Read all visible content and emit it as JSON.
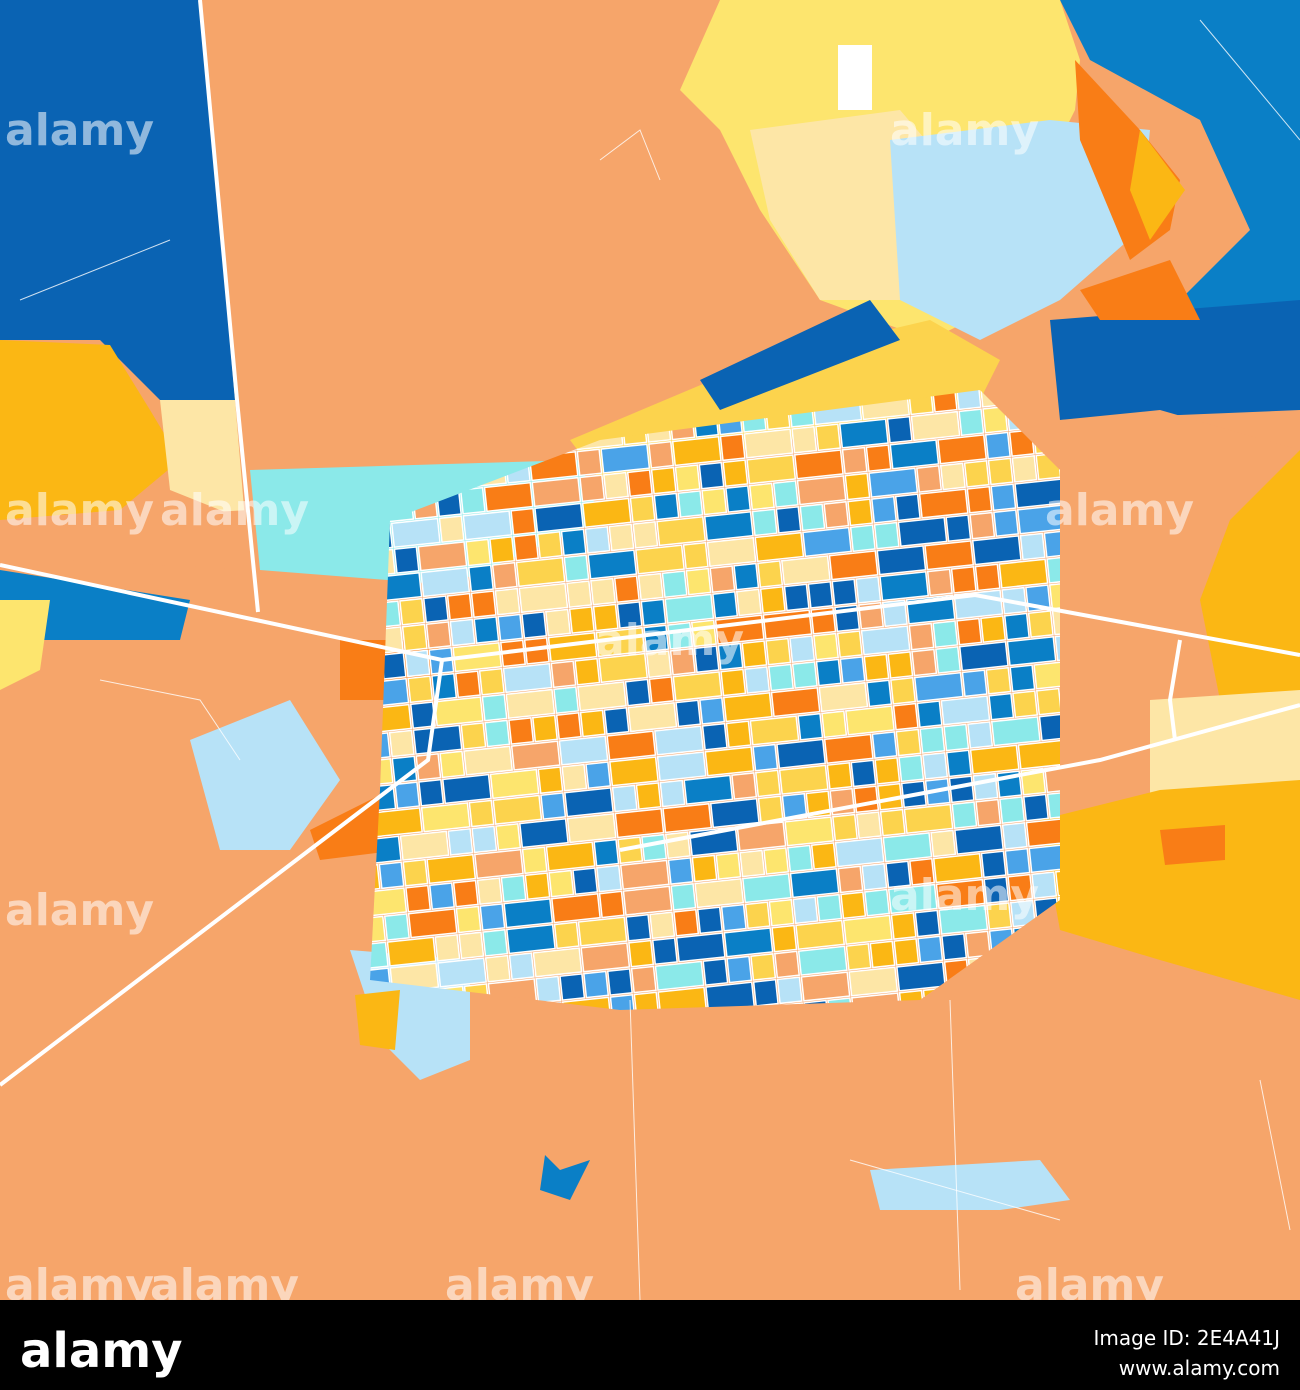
{
  "watermarks": [
    "alamy",
    "alamy",
    "alamy",
    "alamy",
    "alamy",
    "alamy",
    "alamy",
    "alamy",
    "alamy",
    "alamy",
    "alamy",
    "alamy"
  ],
  "footer": {
    "logo": "alamy",
    "image_id": "Image ID: 2E4A41J",
    "url": "www.alamy.com"
  }
}
